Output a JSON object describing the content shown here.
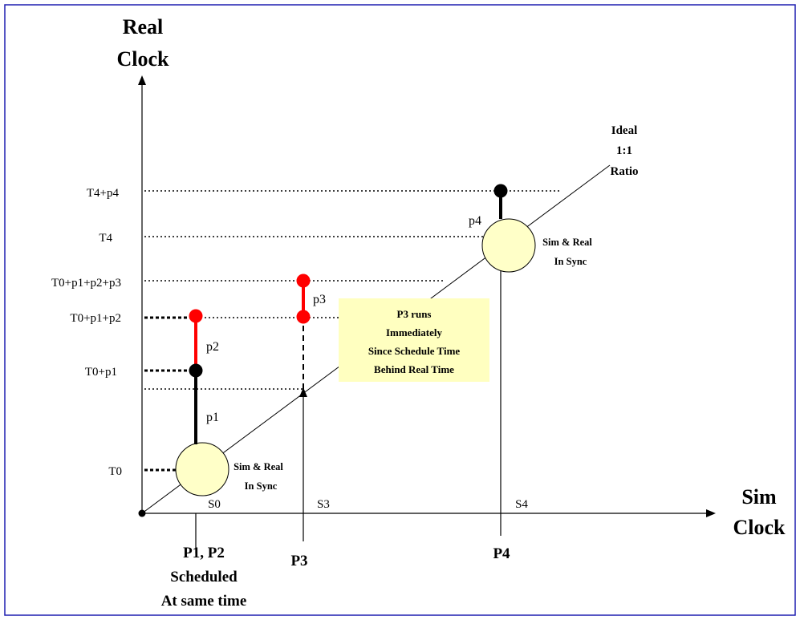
{
  "axes": {
    "y_title_line1": "Real",
    "y_title_line2": "Clock",
    "x_title_line1": "Sim",
    "x_title_line2": "Clock"
  },
  "y_ticks": [
    "T4+p4",
    "T4",
    "T0+p1+p2+p3",
    "T0+p1+p2",
    "T0+p1",
    "T0"
  ],
  "x_ticks": [
    "S0",
    "S3",
    "S4"
  ],
  "ideal_line_label": [
    "Ideal",
    "1:1",
    "Ratio"
  ],
  "process_labels": {
    "p1": "p1",
    "p2": "p2",
    "p3": "p3",
    "p4": "p4"
  },
  "sync_label_1": [
    "Sim & Real",
    "In Sync"
  ],
  "sync_label_2": [
    "Sim & Real",
    "In Sync"
  ],
  "note_box": [
    "P3 runs",
    "Immediately",
    "Since Schedule Time",
    "Behind Real Time"
  ],
  "bottom_labels": {
    "p1p2": [
      "P1, P2",
      "Scheduled",
      "At same time"
    ],
    "p3": "P3",
    "p4": "P4"
  },
  "colors": {
    "border": "#1f1fb0",
    "circle_fill": "#ffffc8",
    "note_fill": "#ffffc0",
    "red": "#ff0000",
    "black": "#000000"
  }
}
